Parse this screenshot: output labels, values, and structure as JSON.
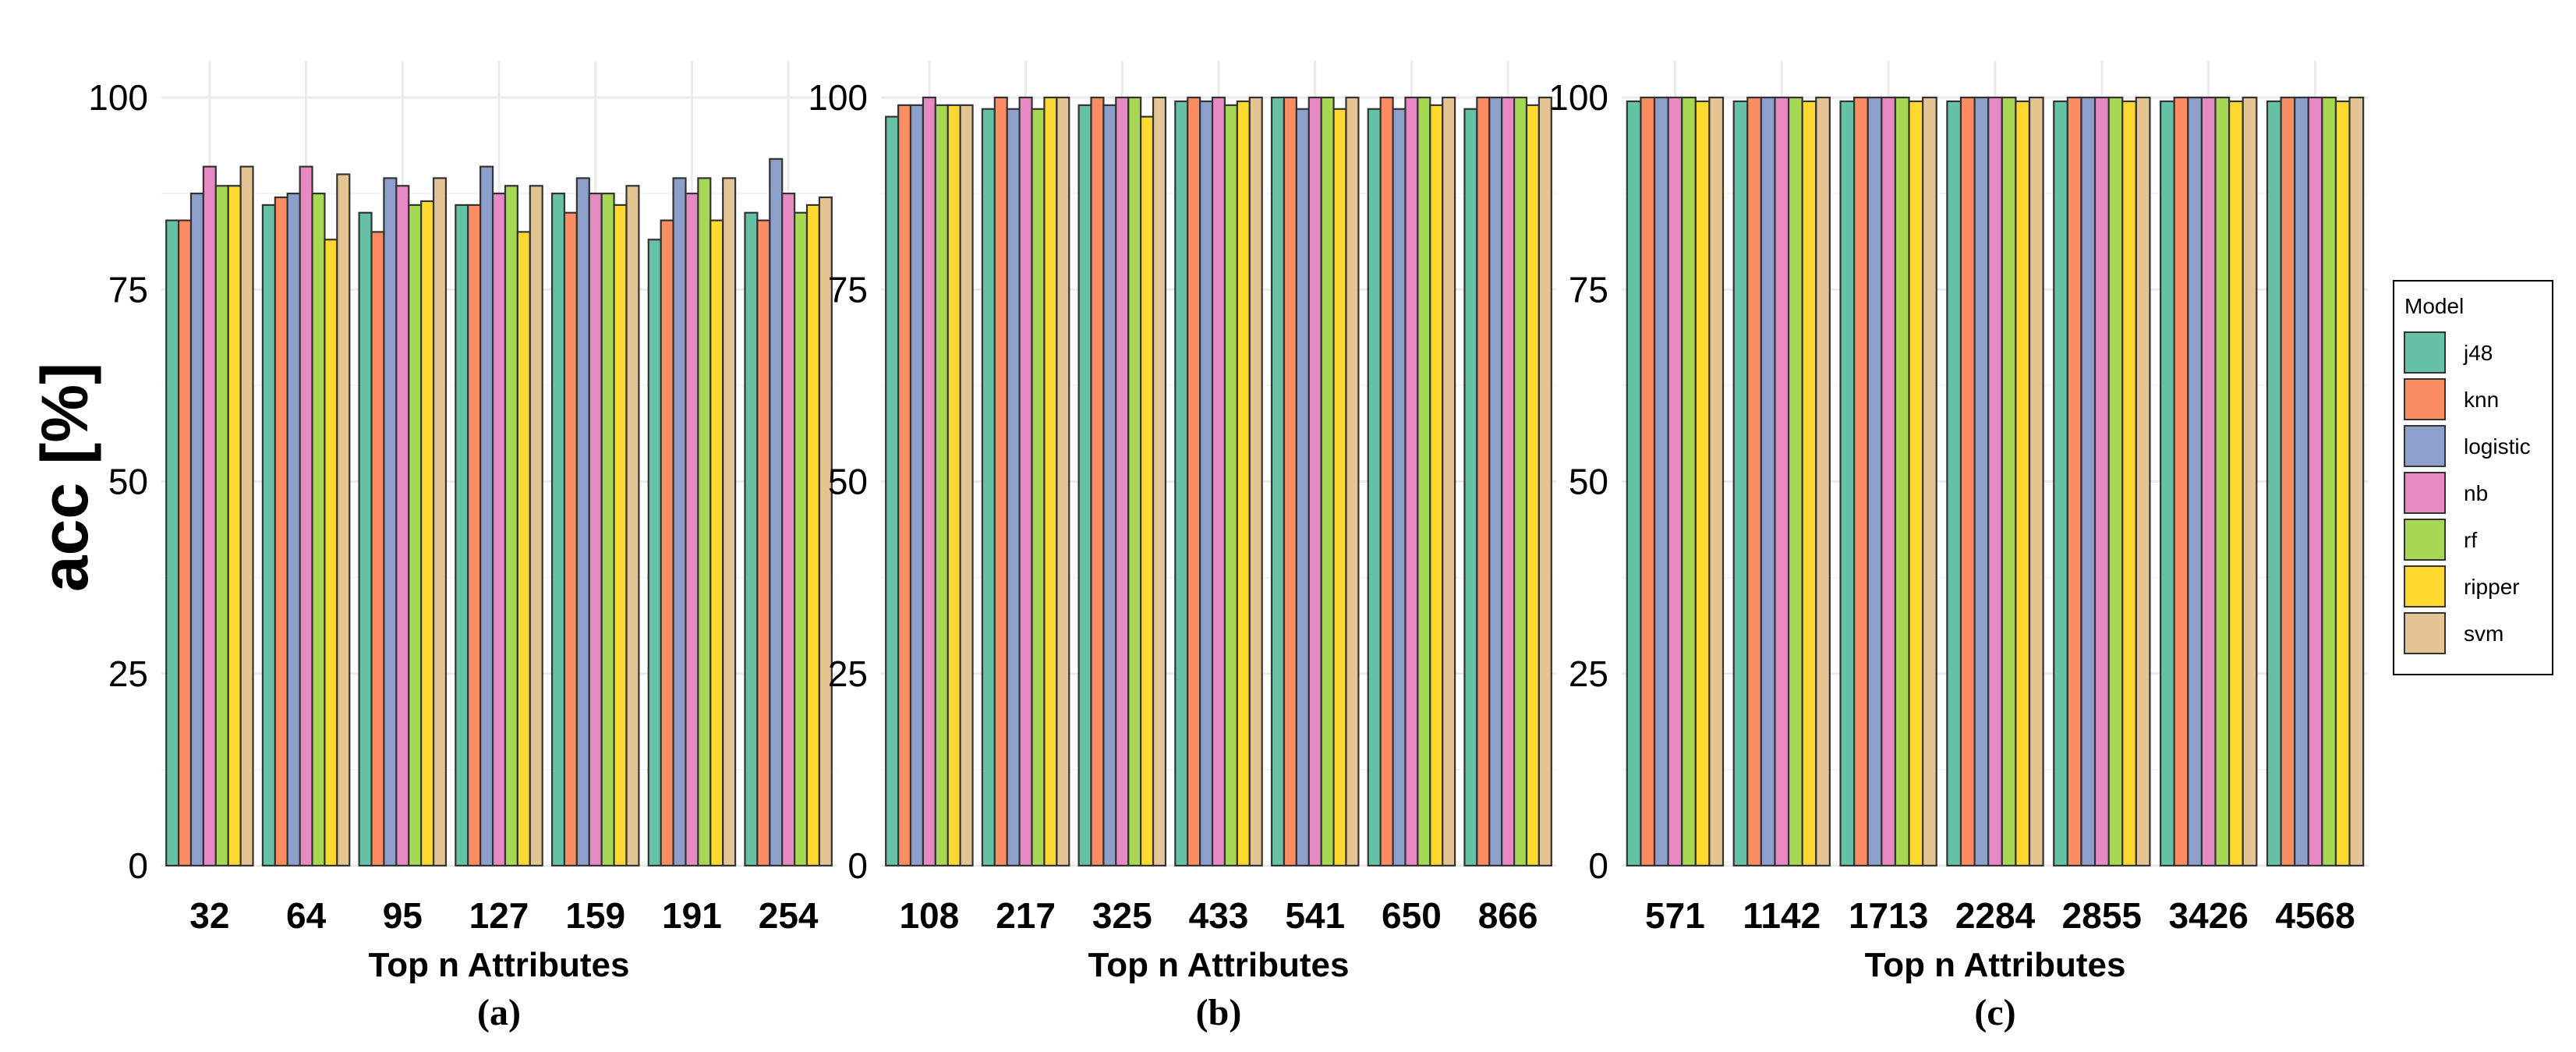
{
  "y_axis_title": "acc [%]",
  "chart_data": [
    {
      "type": "bar",
      "panel_label": "(a)",
      "xlabel": "Top n Attributes",
      "ylabel": "acc [%]",
      "ylim": [
        0,
        100
      ],
      "yticks": [
        0,
        25,
        50,
        75,
        100
      ],
      "grid": true,
      "categories": [
        "32",
        "64",
        "95",
        "127",
        "159",
        "191",
        "254"
      ],
      "series": [
        {
          "name": "j48",
          "values": [
            84,
            86,
            85,
            86,
            87.5,
            81.5,
            85
          ]
        },
        {
          "name": "knn",
          "values": [
            84,
            87,
            82.5,
            86,
            85,
            84,
            84
          ]
        },
        {
          "name": "logistic",
          "values": [
            87.5,
            87.5,
            89.5,
            91,
            89.5,
            89.5,
            92
          ]
        },
        {
          "name": "nb",
          "values": [
            91,
            91,
            88.5,
            87.5,
            87.5,
            87.5,
            87.5
          ]
        },
        {
          "name": "rf",
          "values": [
            88.5,
            87.5,
            86,
            88.5,
            87.5,
            89.5,
            85
          ]
        },
        {
          "name": "ripper",
          "values": [
            88.5,
            81.5,
            86.5,
            82.5,
            86,
            84,
            86
          ]
        },
        {
          "name": "svm",
          "values": [
            91,
            90,
            89.5,
            88.5,
            88.5,
            89.5,
            87
          ]
        }
      ]
    },
    {
      "type": "bar",
      "panel_label": "(b)",
      "xlabel": "Top n Attributes",
      "ylabel": "acc [%]",
      "ylim": [
        0,
        100
      ],
      "yticks": [
        0,
        25,
        50,
        75,
        100
      ],
      "grid": true,
      "categories": [
        "108",
        "217",
        "325",
        "433",
        "541",
        "650",
        "866"
      ],
      "series": [
        {
          "name": "j48",
          "values": [
            97.5,
            98.5,
            99,
            99.5,
            100,
            98.5,
            98.5
          ]
        },
        {
          "name": "knn",
          "values": [
            99,
            100,
            100,
            100,
            100,
            100,
            100
          ]
        },
        {
          "name": "logistic",
          "values": [
            99,
            98.5,
            99,
            99.5,
            98.5,
            98.5,
            100
          ]
        },
        {
          "name": "nb",
          "values": [
            100,
            100,
            100,
            100,
            100,
            100,
            100
          ]
        },
        {
          "name": "rf",
          "values": [
            99,
            98.5,
            100,
            99,
            100,
            100,
            100
          ]
        },
        {
          "name": "ripper",
          "values": [
            99,
            100,
            97.5,
            99.5,
            98.5,
            99,
            99
          ]
        },
        {
          "name": "svm",
          "values": [
            99,
            100,
            100,
            100,
            100,
            100,
            100
          ]
        }
      ]
    },
    {
      "type": "bar",
      "panel_label": "(c)",
      "xlabel": "Top n Attributes",
      "ylabel": "acc [%]",
      "ylim": [
        0,
        100
      ],
      "yticks": [
        0,
        25,
        50,
        75,
        100
      ],
      "grid": true,
      "categories": [
        "571",
        "1142",
        "1713",
        "2284",
        "2855",
        "3426",
        "4568"
      ],
      "series": [
        {
          "name": "j48",
          "values": [
            99.5,
            99.5,
            99.5,
            99.5,
            99.5,
            99.5,
            99.5
          ]
        },
        {
          "name": "knn",
          "values": [
            100,
            100,
            100,
            100,
            100,
            100,
            100
          ]
        },
        {
          "name": "logistic",
          "values": [
            100,
            100,
            100,
            100,
            100,
            100,
            100
          ]
        },
        {
          "name": "nb",
          "values": [
            100,
            100,
            100,
            100,
            100,
            100,
            100
          ]
        },
        {
          "name": "rf",
          "values": [
            100,
            100,
            100,
            100,
            100,
            100,
            100
          ]
        },
        {
          "name": "ripper",
          "values": [
            99.5,
            99.5,
            99.5,
            99.5,
            99.5,
            99.5,
            99.5
          ]
        },
        {
          "name": "svm",
          "values": [
            100,
            100,
            100,
            100,
            100,
            100,
            100
          ]
        }
      ]
    }
  ],
  "legend": {
    "title": "Model",
    "placement": "right",
    "items": [
      {
        "label": "j48",
        "color": "#66C2A5"
      },
      {
        "label": "knn",
        "color": "#FC8D62"
      },
      {
        "label": "logistic",
        "color": "#8DA0CB"
      },
      {
        "label": "nb",
        "color": "#E78AC3"
      },
      {
        "label": "rf",
        "color": "#A6D854"
      },
      {
        "label": "ripper",
        "color": "#FFD92F"
      },
      {
        "label": "svm",
        "color": "#E5C494"
      }
    ]
  }
}
